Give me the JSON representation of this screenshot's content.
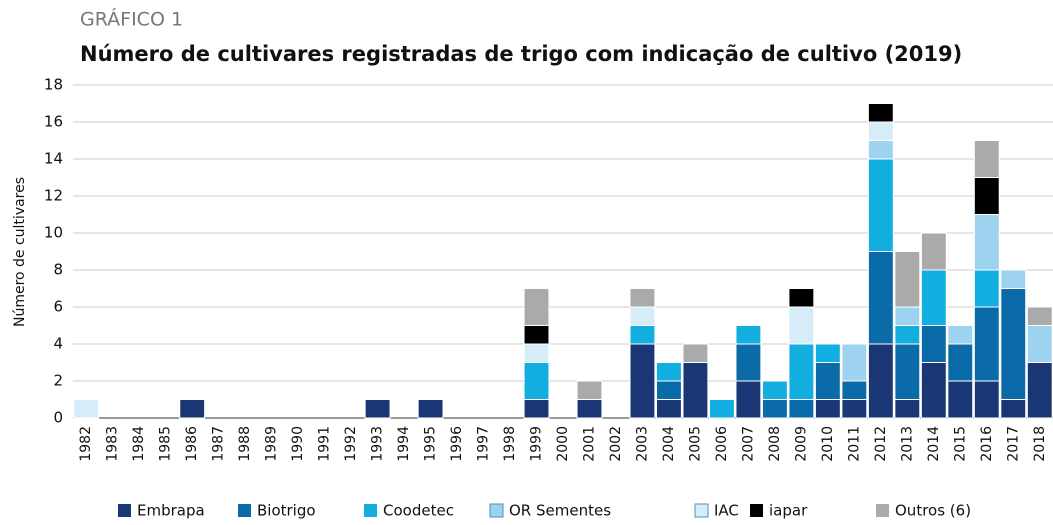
{
  "chart_data": {
    "type": "stacked_bar",
    "kicker": "GRÁFICO 1",
    "title": "Número de cultivares registradas de trigo com indicação de cultivo (2019)",
    "y_label": "Número de cultivares",
    "categories": [
      "1982",
      "1983",
      "1984",
      "1985",
      "1986",
      "1987",
      "1988",
      "1989",
      "1990",
      "1991",
      "1992",
      "1993",
      "1994",
      "1995",
      "1996",
      "1997",
      "1998",
      "1999",
      "2000",
      "2001",
      "2002",
      "2003",
      "2004",
      "2005",
      "2006",
      "2007",
      "2008",
      "2009",
      "2010",
      "2011",
      "2012",
      "2013",
      "2014",
      "2015",
      "2016",
      "2017",
      "2018"
    ],
    "series": [
      {
        "name": "Embrapa",
        "color": "#1b3674",
        "values": [
          0,
          0,
          0,
          0,
          1,
          0,
          0,
          0,
          0,
          0,
          0,
          1,
          0,
          1,
          0,
          0,
          0,
          1,
          0,
          1,
          0,
          4,
          1,
          3,
          0,
          2,
          0,
          0,
          1,
          1,
          4,
          1,
          3,
          2,
          2,
          1,
          3
        ]
      },
      {
        "name": "Biotrigo",
        "color": "#0b6aa8",
        "values": [
          0,
          0,
          0,
          0,
          0,
          0,
          0,
          0,
          0,
          0,
          0,
          0,
          0,
          0,
          0,
          0,
          0,
          0,
          0,
          0,
          0,
          0,
          1,
          0,
          0,
          2,
          1,
          1,
          2,
          1,
          5,
          3,
          2,
          2,
          4,
          6,
          0
        ]
      },
      {
        "name": "Coodetec",
        "color": "#12aee0",
        "values": [
          0,
          0,
          0,
          0,
          0,
          0,
          0,
          0,
          0,
          0,
          0,
          0,
          0,
          0,
          0,
          0,
          0,
          2,
          0,
          0,
          0,
          1,
          1,
          0,
          1,
          1,
          1,
          3,
          1,
          0,
          5,
          1,
          3,
          0,
          2,
          0,
          0
        ]
      },
      {
        "name": "OR Sementes",
        "color": "#9ed3ef",
        "values": [
          0,
          0,
          0,
          0,
          0,
          0,
          0,
          0,
          0,
          0,
          0,
          0,
          0,
          0,
          0,
          0,
          0,
          0,
          0,
          0,
          0,
          0,
          0,
          0,
          0,
          0,
          0,
          0,
          0,
          2,
          1,
          1,
          0,
          1,
          3,
          1,
          2
        ]
      },
      {
        "name": "IAC",
        "color": "#d6ecf8",
        "values": [
          1,
          0,
          0,
          0,
          0,
          0,
          0,
          0,
          0,
          0,
          0,
          0,
          0,
          0,
          0,
          0,
          0,
          1,
          0,
          0,
          0,
          1,
          0,
          0,
          0,
          0,
          0,
          2,
          0,
          0,
          1,
          0,
          0,
          0,
          0,
          0,
          0
        ]
      },
      {
        "name": "iapar",
        "color": "#000000",
        "values": [
          0,
          0,
          0,
          0,
          0,
          0,
          0,
          0,
          0,
          0,
          0,
          0,
          0,
          0,
          0,
          0,
          0,
          1,
          0,
          0,
          0,
          0,
          0,
          0,
          0,
          0,
          0,
          1,
          0,
          0,
          1,
          0,
          0,
          0,
          2,
          0,
          0
        ]
      },
      {
        "name": "Outros (6)",
        "color": "#aaaaaa",
        "values": [
          0,
          0,
          0,
          0,
          0,
          0,
          0,
          0,
          0,
          0,
          0,
          0,
          0,
          0,
          0,
          0,
          0,
          2,
          0,
          1,
          0,
          1,
          0,
          1,
          0,
          0,
          0,
          0,
          0,
          0,
          0,
          3,
          2,
          0,
          2,
          0,
          1
        ]
      }
    ],
    "ylim": [
      0,
      18
    ],
    "yticks": [
      0,
      2,
      4,
      6,
      8,
      10,
      12,
      14,
      16,
      18
    ],
    "grid": true
  }
}
